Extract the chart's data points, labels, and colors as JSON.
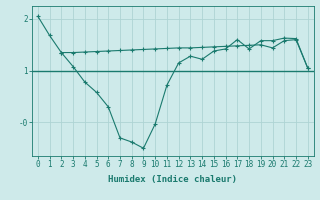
{
  "xlabel": "Humidex (Indice chaleur)",
  "bg_color": "#ceeaea",
  "line_color": "#1a7a6e",
  "grid_color": "#aed4d4",
  "xlim": [
    -0.5,
    23.5
  ],
  "ylim": [
    -0.65,
    2.25
  ],
  "yticks": [
    0.0,
    1.0,
    2.0
  ],
  "ytick_labels": [
    "-0",
    "1",
    "2"
  ],
  "xticks": [
    0,
    1,
    2,
    3,
    4,
    5,
    6,
    7,
    8,
    9,
    10,
    11,
    12,
    13,
    14,
    15,
    16,
    17,
    18,
    19,
    20,
    21,
    22,
    23
  ],
  "line1_x": [
    0,
    1,
    2,
    3,
    4,
    5,
    6,
    7,
    8,
    9,
    10,
    11,
    12,
    13,
    14,
    15,
    16,
    17,
    18,
    19,
    20,
    21,
    22,
    23
  ],
  "line1_y": [
    2.05,
    1.68,
    1.35,
    1.08,
    0.78,
    0.58,
    0.3,
    -0.3,
    -0.38,
    -0.5,
    -0.03,
    0.72,
    1.15,
    1.28,
    1.22,
    1.38,
    1.42,
    1.6,
    1.42,
    1.58,
    1.58,
    1.63,
    1.62,
    1.05
  ],
  "line2_x": [
    2,
    3,
    4,
    5,
    6,
    7,
    8,
    9,
    10,
    11,
    12,
    13,
    14,
    15,
    16,
    17,
    18,
    19,
    20,
    21,
    22,
    23
  ],
  "line2_y": [
    1.35,
    1.35,
    1.36,
    1.37,
    1.38,
    1.39,
    1.4,
    1.41,
    1.42,
    1.43,
    1.44,
    1.44,
    1.45,
    1.46,
    1.47,
    1.48,
    1.49,
    1.5,
    1.44,
    1.58,
    1.6,
    1.05
  ],
  "hline_y": 1.0,
  "font_color": "#1a7a6e",
  "xlabel_fontsize": 6.5,
  "tick_fontsize": 5.5
}
